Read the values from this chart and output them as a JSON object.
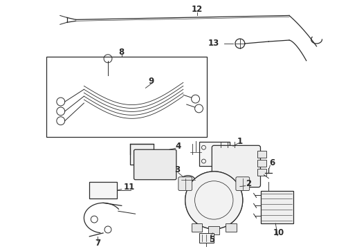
{
  "bg_color": "#ffffff",
  "line_color": "#2a2a2a",
  "fig_width": 4.9,
  "fig_height": 3.6,
  "dpi": 100,
  "label_fontsize": 8.5,
  "label_fontsize_small": 7.5
}
